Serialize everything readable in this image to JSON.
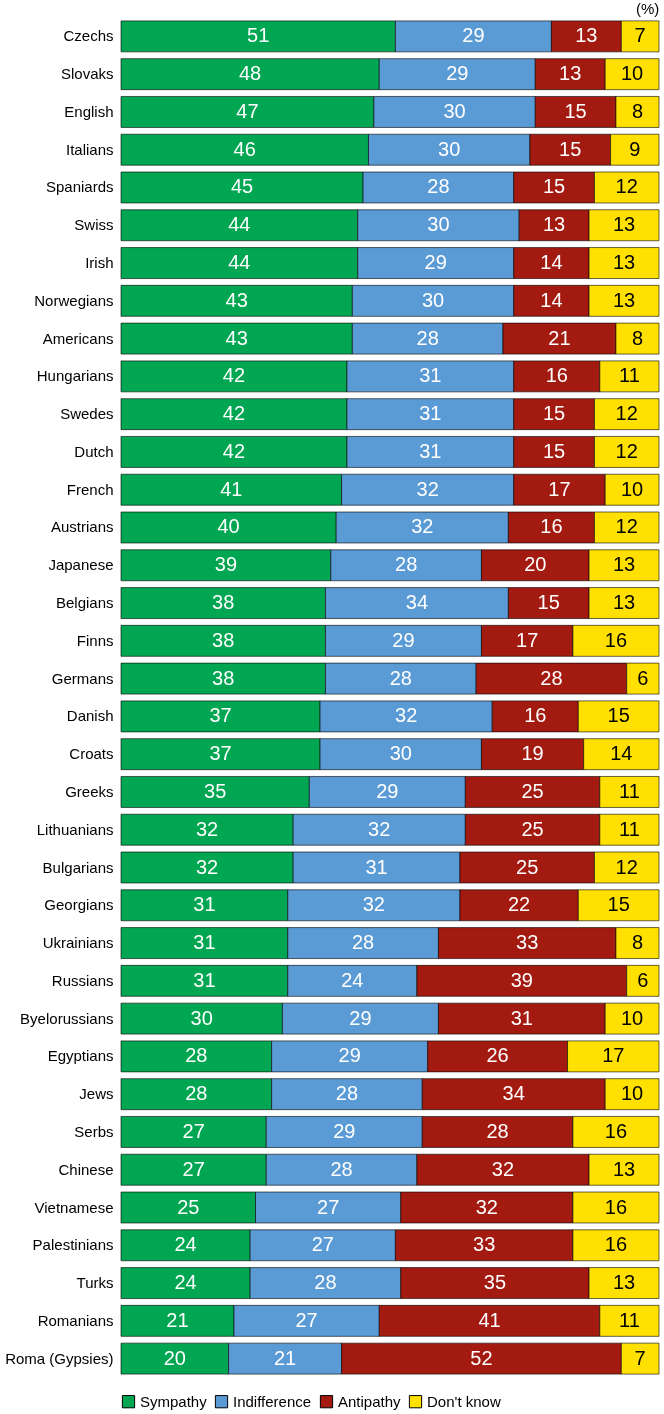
{
  "chart_data": {
    "type": "bar",
    "orientation": "horizontal",
    "stacked": true,
    "data_labels": true,
    "legend": "bottom",
    "grid": false,
    "annotations": [
      "(%)"
    ],
    "categories": [
      "Czechs",
      "Slovaks",
      "English",
      "Italians",
      "Spaniards",
      "Swiss",
      "Irish",
      "Norwegians",
      "Americans",
      "Hungarians",
      "Swedes",
      "Dutch",
      "French",
      "Austrians",
      "Japanese",
      "Belgians",
      "Finns",
      "Germans",
      "Danish",
      "Croats",
      "Greeks",
      "Lithuanians",
      "Bulgarians",
      "Georgians",
      "Ukrainians",
      "Russians",
      "Byelorussians",
      "Egyptians",
      "Jews",
      "Serbs",
      "Chinese",
      "Vietnamese",
      "Palestinians",
      "Turks",
      "Romanians",
      "Roma (Gypsies)"
    ],
    "series": [
      {
        "name": "Sympathy",
        "color": "#00a651",
        "values": [
          51,
          48,
          47,
          46,
          45,
          44,
          44,
          43,
          43,
          42,
          42,
          42,
          41,
          40,
          39,
          38,
          38,
          38,
          37,
          37,
          35,
          32,
          32,
          31,
          31,
          31,
          30,
          28,
          28,
          27,
          27,
          25,
          24,
          24,
          21,
          20
        ]
      },
      {
        "name": "Indifference",
        "color": "#5b9bd5",
        "values": [
          29,
          29,
          30,
          30,
          28,
          30,
          29,
          30,
          28,
          31,
          31,
          31,
          32,
          32,
          28,
          34,
          29,
          28,
          32,
          30,
          29,
          32,
          31,
          32,
          28,
          24,
          29,
          29,
          28,
          29,
          28,
          27,
          27,
          28,
          27,
          21
        ]
      },
      {
        "name": "Antipathy",
        "color": "#a21a10",
        "values": [
          13,
          13,
          15,
          15,
          15,
          13,
          14,
          14,
          21,
          16,
          15,
          15,
          17,
          16,
          20,
          15,
          17,
          28,
          16,
          19,
          25,
          25,
          25,
          22,
          33,
          39,
          31,
          26,
          34,
          28,
          32,
          32,
          33,
          35,
          41,
          52
        ]
      },
      {
        "name": "Don't know",
        "color": "#ffe000",
        "values": [
          7,
          10,
          8,
          9,
          12,
          13,
          13,
          13,
          8,
          11,
          12,
          12,
          10,
          12,
          13,
          13,
          16,
          6,
          15,
          14,
          11,
          11,
          12,
          15,
          8,
          6,
          10,
          17,
          10,
          16,
          13,
          16,
          16,
          13,
          11,
          7
        ]
      }
    ]
  }
}
